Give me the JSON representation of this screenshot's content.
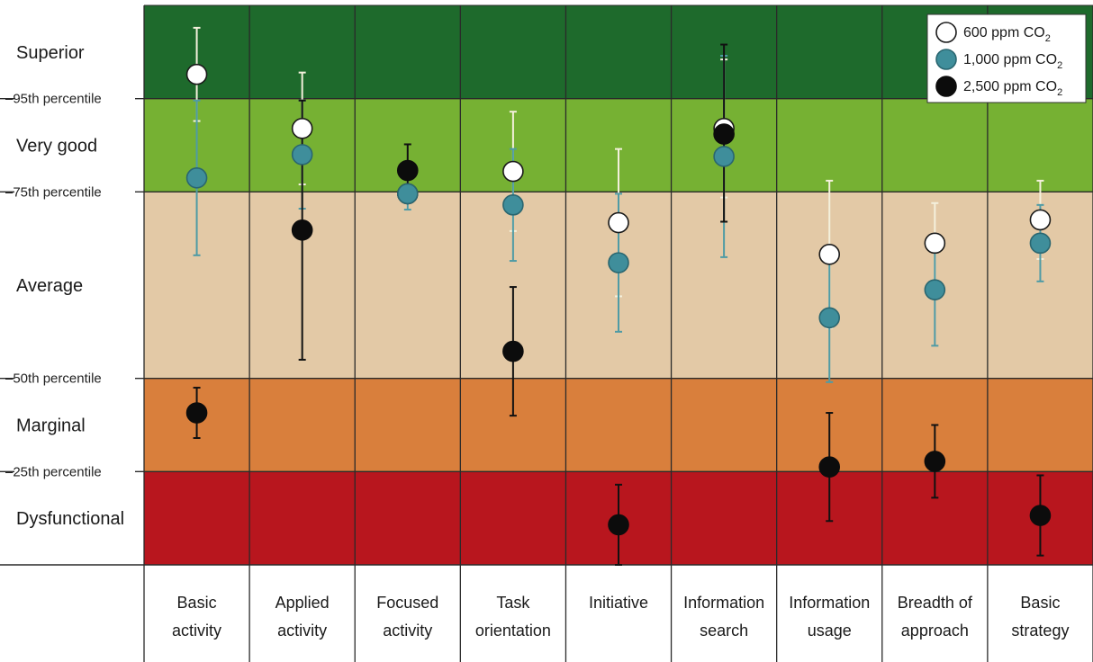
{
  "chart_data": {
    "type": "scatter",
    "title": "",
    "ylim": [
      0,
      6
    ],
    "bands": [
      {
        "label": "Dysfunctional",
        "from": 0,
        "to": 1,
        "color": "#b8161e"
      },
      {
        "label": "Marginal",
        "from": 1,
        "to": 2,
        "color": "#d97f3c"
      },
      {
        "label": "Average",
        "from": 2,
        "to": 4,
        "color": "#e3c9a6"
      },
      {
        "label": "Very good",
        "from": 4,
        "to": 5,
        "color": "#76b133"
      },
      {
        "label": "Superior",
        "from": 5,
        "to": 6,
        "color": "#1e6a2c"
      }
    ],
    "percentile_lines": [
      {
        "label": "–25th percentile",
        "value": 1
      },
      {
        "label": "–50th percentile",
        "value": 2
      },
      {
        "label": "–75th percentile",
        "value": 4
      },
      {
        "label": "–95th percentile",
        "value": 5
      }
    ],
    "categories": [
      [
        "Basic",
        "activity"
      ],
      [
        "Applied",
        "activity"
      ],
      [
        "Focused",
        "activity"
      ],
      [
        "Task",
        "orientation"
      ],
      [
        "Initiative",
        ""
      ],
      [
        "Information",
        "search"
      ],
      [
        "Information",
        "usage"
      ],
      [
        "Breadth of",
        "approach"
      ],
      [
        "Basic",
        "strategy"
      ]
    ],
    "series": [
      {
        "name": "600 ppm CO",
        "sub": "2",
        "fill": "#ffffff",
        "stroke": "#1a1a1a",
        "errcolor": "#f4f0dc",
        "values": [
          5.26,
          4.68,
          3.98,
          4.22,
          3.67,
          4.68,
          3.33,
          3.45,
          3.7
        ],
        "err_hi": [
          5.76,
          5.28,
          4.15,
          4.86,
          4.46,
          5.42,
          4.12,
          3.88,
          4.12
        ],
        "err_lo": [
          4.76,
          4.08,
          3.81,
          3.58,
          2.88,
          3.94,
          2.54,
          3.02,
          3.28
        ]
      },
      {
        "name": "1,000 ppm CO",
        "sub": "2",
        "fill": "#3f8e9b",
        "stroke": "#2a6670",
        "errcolor": "#4f9ba5",
        "values": [
          4.15,
          4.4,
          3.98,
          3.86,
          3.24,
          4.38,
          2.65,
          2.95,
          3.45
        ],
        "err_hi": [
          4.98,
          4.98,
          4.15,
          4.46,
          3.98,
          5.46,
          3.34,
          3.55,
          3.86
        ],
        "err_lo": [
          3.32,
          3.82,
          3.81,
          3.26,
          2.5,
          3.3,
          1.96,
          2.35,
          3.04
        ]
      },
      {
        "name": "2,500 ppm CO",
        "sub": "2",
        "fill": "#0c0c0c",
        "stroke": "#0c0c0c",
        "errcolor": "#111111",
        "values": [
          1.63,
          3.59,
          4.23,
          2.29,
          0.43,
          4.62,
          1.05,
          1.11,
          0.53
        ],
        "err_hi": [
          1.9,
          4.98,
          4.51,
          2.98,
          0.86,
          5.58,
          1.63,
          1.5,
          0.96
        ],
        "err_lo": [
          1.36,
          2.2,
          3.95,
          1.6,
          0.0,
          3.68,
          0.47,
          0.72,
          0.1
        ]
      }
    ]
  }
}
